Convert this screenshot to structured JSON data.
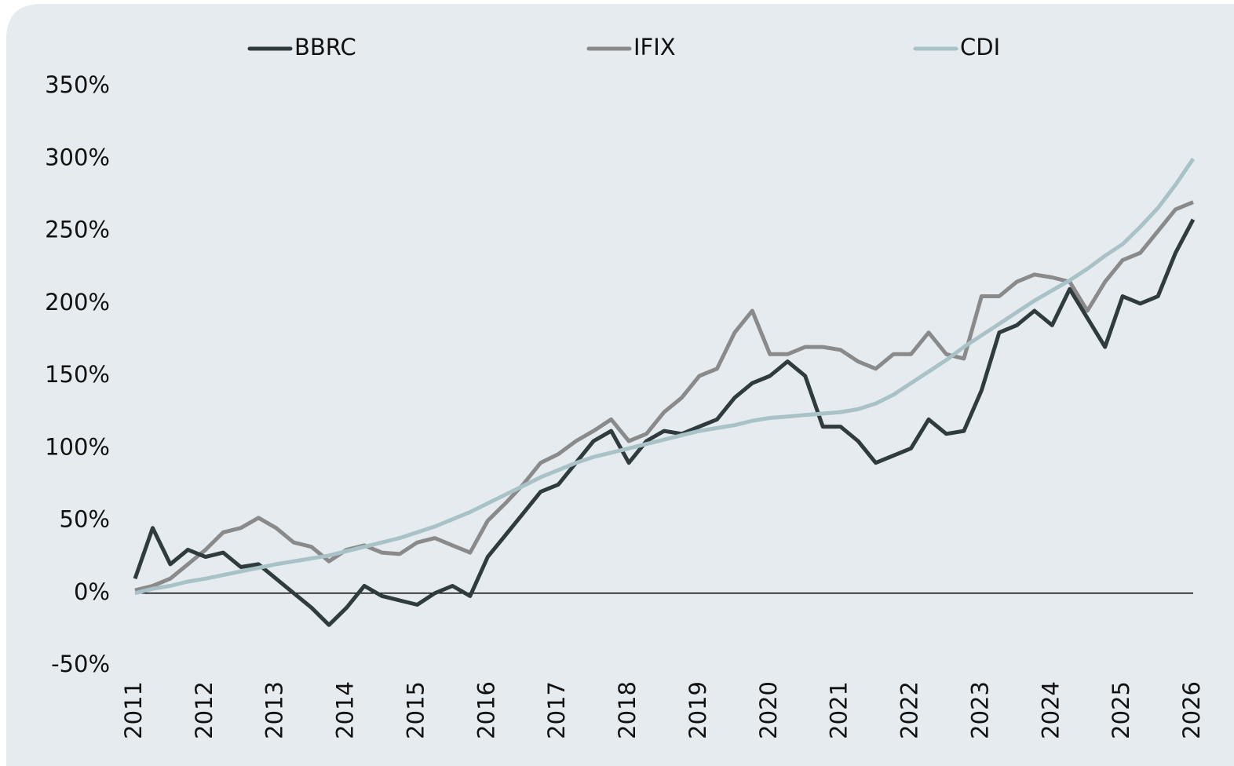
{
  "chart_data": {
    "type": "line",
    "x": [
      2011,
      2011.25,
      2011.5,
      2011.75,
      2012,
      2012.25,
      2012.5,
      2012.75,
      2013,
      2013.25,
      2013.5,
      2013.75,
      2014,
      2014.25,
      2014.5,
      2014.75,
      2015,
      2015.25,
      2015.5,
      2015.75,
      2016,
      2016.25,
      2016.5,
      2016.75,
      2017,
      2017.25,
      2017.5,
      2017.75,
      2018,
      2018.25,
      2018.5,
      2018.75,
      2019,
      2019.25,
      2019.5,
      2019.75,
      2020,
      2020.25,
      2020.5,
      2020.75,
      2021,
      2021.25,
      2021.5,
      2021.75,
      2022,
      2022.25,
      2022.5,
      2022.75,
      2023,
      2023.25,
      2023.5,
      2023.75,
      2024,
      2024.25,
      2024.5,
      2024.75,
      2025,
      2025.25,
      2025.5,
      2025.75,
      2026
    ],
    "series": [
      {
        "name": "BBRC",
        "color": "#2f3b3d",
        "values": [
          10,
          45,
          20,
          30,
          25,
          28,
          18,
          20,
          10,
          0,
          -10,
          -22,
          -10,
          5,
          -2,
          -5,
          -8,
          0,
          5,
          -2,
          25,
          40,
          55,
          70,
          75,
          90,
          105,
          112,
          90,
          105,
          112,
          110,
          115,
          120,
          135,
          145,
          150,
          160,
          150,
          115,
          115,
          105,
          90,
          95,
          100,
          120,
          110,
          112,
          140,
          180,
          185,
          195,
          185,
          210,
          190,
          170,
          205,
          200,
          205,
          235,
          258
        ]
      },
      {
        "name": "IFIX",
        "color": "#8a8a8a",
        "values": [
          2,
          5,
          10,
          20,
          30,
          42,
          45,
          52,
          45,
          35,
          32,
          22,
          30,
          33,
          28,
          27,
          35,
          38,
          33,
          28,
          50,
          62,
          75,
          90,
          96,
          105,
          112,
          120,
          105,
          110,
          125,
          135,
          150,
          155,
          180,
          195,
          165,
          165,
          170,
          170,
          168,
          160,
          155,
          165,
          165,
          180,
          165,
          162,
          205,
          205,
          215,
          220,
          218,
          215,
          195,
          215,
          230,
          235,
          250,
          265,
          270
        ]
      },
      {
        "name": "CDI",
        "color": "#a9c2c8",
        "values": [
          0,
          3,
          5,
          8,
          10,
          12.5,
          15,
          17.5,
          20,
          22,
          24,
          26,
          29,
          32,
          35,
          38,
          42,
          46,
          51,
          56,
          62,
          68,
          74,
          80,
          85,
          90,
          94,
          97,
          100,
          103,
          106,
          109,
          112,
          114,
          116,
          119,
          121,
          122,
          123,
          124,
          125,
          127,
          131,
          137,
          145,
          153,
          161,
          170,
          178,
          186,
          194,
          202,
          209,
          216,
          224,
          233,
          241,
          253,
          266,
          282,
          300
        ]
      }
    ],
    "xlim": [
      2011,
      2026
    ],
    "xticks": [
      2011,
      2012,
      2013,
      2014,
      2015,
      2016,
      2017,
      2018,
      2019,
      2020,
      2021,
      2022,
      2023,
      2024,
      2025,
      2026
    ],
    "ylim": [
      -50,
      350
    ],
    "yticks": [
      {
        "value": -50,
        "label": "-50%"
      },
      {
        "value": 0,
        "label": "0%"
      },
      {
        "value": 50,
        "label": "50%"
      },
      {
        "value": 100,
        "label": "100%"
      },
      {
        "value": 150,
        "label": "150%"
      },
      {
        "value": 200,
        "label": "200%"
      },
      {
        "value": 250,
        "label": "250%"
      },
      {
        "value": 300,
        "label": "300%"
      },
      {
        "value": 350,
        "label": "350%"
      }
    ],
    "legend": "top"
  }
}
